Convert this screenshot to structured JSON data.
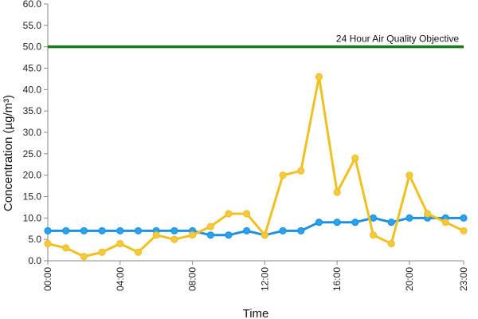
{
  "chart_data": {
    "type": "line",
    "title": "",
    "xlabel": "Time",
    "ylabel": "Concentration (µg/m³)",
    "ylim": [
      0,
      60
    ],
    "ytick_step": 5,
    "ytick_labels": [
      "0.0",
      "5.0",
      "10.0",
      "15.0",
      "20.0",
      "25.0",
      "30.0",
      "35.0",
      "40.0",
      "45.0",
      "50.0",
      "55.0",
      "60.0"
    ],
    "xlim": [
      0,
      23
    ],
    "xtick_labels": [
      {
        "hour": 0,
        "label": "00:00"
      },
      {
        "hour": 4,
        "label": "04:00"
      },
      {
        "hour": 8,
        "label": "08:00"
      },
      {
        "hour": 12,
        "label": "12:00"
      },
      {
        "hour": 16,
        "label": "16:00"
      },
      {
        "hour": 20,
        "label": "20:00"
      },
      {
        "hour": 23,
        "label": "23:00"
      }
    ],
    "grid": false,
    "legend": "none",
    "x": [
      0,
      1,
      2,
      3,
      4,
      5,
      6,
      7,
      8,
      9,
      10,
      11,
      12,
      13,
      14,
      15,
      16,
      17,
      18,
      19,
      20,
      21,
      22,
      23
    ],
    "series": [
      {
        "color": "#1e90e0",
        "marker_fill": "#2aa3ee",
        "values": [
          7,
          7,
          7,
          7,
          7,
          7,
          7,
          7,
          7,
          6,
          6,
          7,
          6,
          7,
          7,
          9,
          9,
          9,
          10,
          9,
          10,
          10,
          10,
          10
        ]
      },
      {
        "color": "#f0c020",
        "marker_fill": "#f5c842",
        "values": [
          4,
          3,
          1,
          2,
          4,
          2,
          6,
          5,
          6,
          8,
          11,
          11,
          6,
          20,
          21,
          43,
          16,
          24,
          6,
          4,
          20,
          11,
          9,
          7
        ]
      }
    ],
    "reference_line": {
      "value": 50,
      "label": "24 Hour Air Quality Objective",
      "color": "#1a7a1a"
    }
  }
}
